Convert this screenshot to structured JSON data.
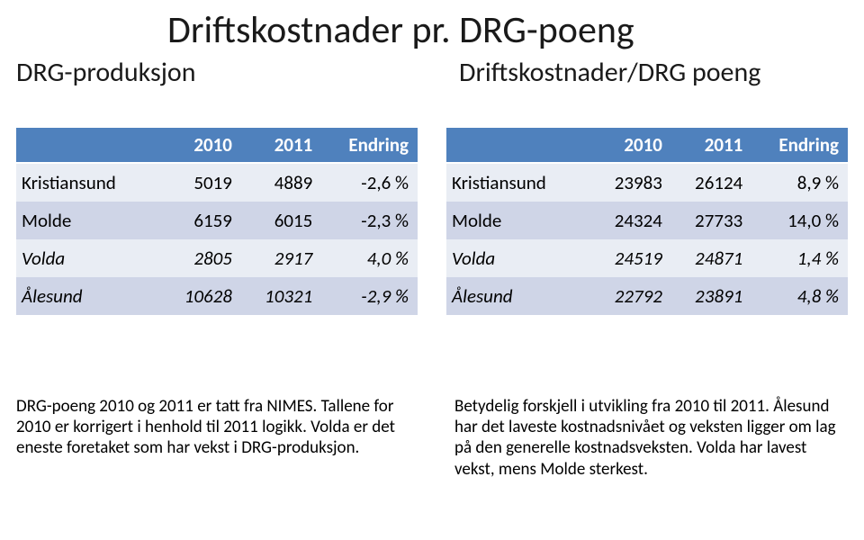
{
  "title": "Driftskostnader pr. DRG-poeng",
  "subtitle_left": "DRG-produksjon",
  "subtitle_right": "Driftskostnader/DRG poeng",
  "colors": {
    "header_bg": "#4f81bd",
    "header_fg": "#ffffff",
    "row_odd_bg": "#e9edf4",
    "row_even_bg": "#cfd5e7",
    "page_bg": "#ffffff",
    "text": "#000000"
  },
  "typography": {
    "title_fontsize": 42,
    "subtitle_fontsize": 30,
    "table_fontsize": 21,
    "note_fontsize": 19,
    "font_family": "Calibri"
  },
  "left_table": {
    "columns": [
      "",
      "2010",
      "2011",
      "Endring"
    ],
    "rows": [
      {
        "label": "Kristiansund",
        "c0": "5019",
        "c1": "4889",
        "c2": "-2,6 %",
        "italic": false
      },
      {
        "label": "Molde",
        "c0": "6159",
        "c1": "6015",
        "c2": "-2,3 %",
        "italic": false
      },
      {
        "label": "Volda",
        "c0": "2805",
        "c1": "2917",
        "c2": "4,0 %",
        "italic": true
      },
      {
        "label": "Ålesund",
        "c0": "10628",
        "c1": "10321",
        "c2": "-2,9 %",
        "italic": true
      }
    ]
  },
  "right_table": {
    "columns": [
      "",
      "2010",
      "2011",
      "Endring"
    ],
    "rows": [
      {
        "label": "Kristiansund",
        "c0": "23983",
        "c1": "26124",
        "c2": "8,9 %",
        "italic": false
      },
      {
        "label": "Molde",
        "c0": "24324",
        "c1": "27733",
        "c2": "14,0 %",
        "italic": false
      },
      {
        "label": "Volda",
        "c0": "24519",
        "c1": "24871",
        "c2": "1,4 %",
        "italic": true
      },
      {
        "label": "Ålesund",
        "c0": "22792",
        "c1": "23891",
        "c2": "4,8 %",
        "italic": true
      }
    ]
  },
  "note_left": "DRG-poeng 2010 og 2011 er tatt fra NIMES. Tallene for 2010 er korrigert i henhold til 2011 logikk. Volda er det eneste foretaket som har vekst i DRG-produksjon.",
  "note_right": "Betydelig forskjell i utvikling fra 2010 til 2011. Ålesund har det laveste kostnadsnivået og veksten ligger om lag på den generelle kostnadsveksten. Volda har lavest vekst, mens Molde sterkest."
}
